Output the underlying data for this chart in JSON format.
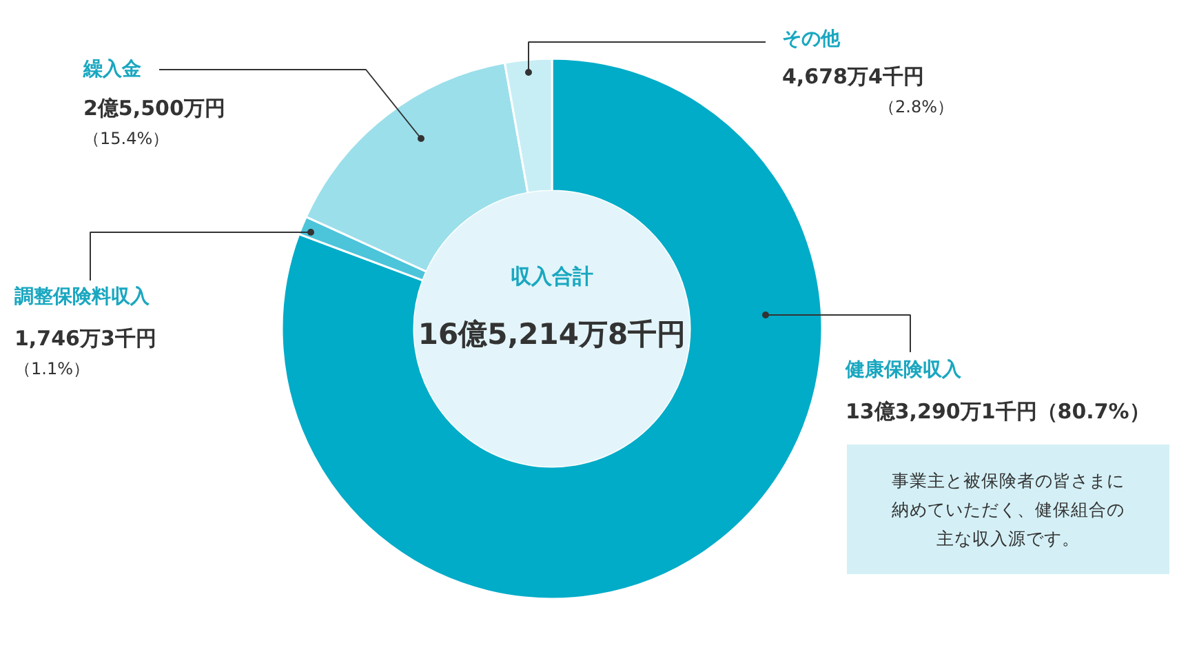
{
  "chart_data": {
    "type": "donut",
    "title": "収入合計",
    "categories": [
      "健康保険収入",
      "調整保険料収入",
      "繰入金",
      "その他"
    ],
    "values": [
      80.7,
      1.1,
      15.4,
      2.8
    ],
    "colors": [
      "#00acc8",
      "#4cc4da",
      "#9bdfeb",
      "#c8eef5"
    ],
    "value_labels": [
      "13億3,290万1千円（80.7%）",
      "1,746万3千円（1.1%）",
      "2億5,500万円（15.4%）",
      "4,678万4千円（2.8%）"
    ],
    "annotations": [
      "16億5,214万8千円",
      "事業主と被保険者の皆さまに",
      "納めていただく、健保組合の",
      "主な収入源です。"
    ]
  }
}
